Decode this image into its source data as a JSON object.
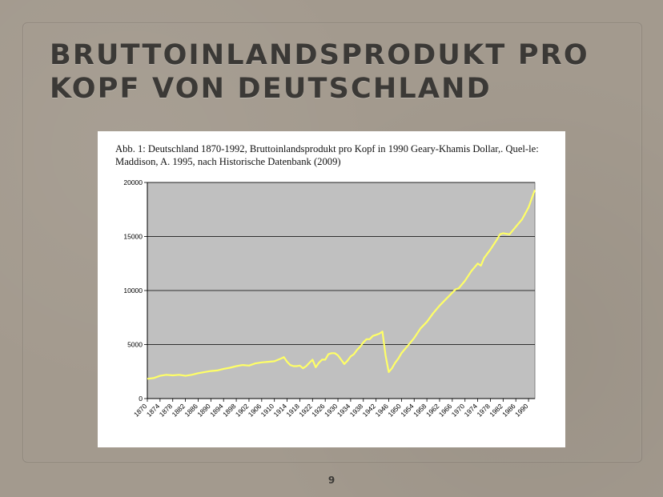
{
  "slide": {
    "title": "BRUTTOINLANDSPRODUKT PRO KOPF VON DEUTSCHLAND",
    "caption": "Abb. 1: Deutschland 1870-1992, Bruttoinlandsprodukt pro Kopf in 1990 Geary-Khamis Dollar,. Quel-le: Maddison, A. 1995, nach Historische Datenbank (2009)",
    "page_number": "9"
  },
  "chart_data": {
    "type": "line",
    "title": "",
    "xlabel": "",
    "ylabel": "",
    "xlim": [
      1870,
      1992
    ],
    "ylim": [
      0,
      20000
    ],
    "yticks": [
      0,
      5000,
      10000,
      15000,
      20000
    ],
    "xticks": [
      1870,
      1874,
      1878,
      1882,
      1886,
      1890,
      1894,
      1898,
      1902,
      1906,
      1910,
      1914,
      1918,
      1922,
      1926,
      1930,
      1934,
      1938,
      1942,
      1946,
      1950,
      1954,
      1958,
      1962,
      1966,
      1970,
      1974,
      1978,
      1982,
      1986,
      1990
    ],
    "grid": true,
    "legend": "none",
    "colors": {
      "line": "#ffff66",
      "plot_bg": "#c0c0c0",
      "grid": "#000000"
    },
    "series": [
      {
        "x": [
          1870,
          1872,
          1874,
          1876,
          1878,
          1880,
          1882,
          1884,
          1886,
          1888,
          1890,
          1892,
          1894,
          1896,
          1898,
          1900,
          1902,
          1904,
          1906,
          1908,
          1910,
          1912,
          1913,
          1914,
          1915,
          1916,
          1917,
          1918,
          1919,
          1920,
          1921,
          1922,
          1923,
          1924,
          1925,
          1926,
          1927,
          1928,
          1929,
          1930,
          1931,
          1932,
          1933,
          1934,
          1935,
          1936,
          1937,
          1938,
          1939,
          1940,
          1941,
          1942,
          1943,
          1944,
          1945,
          1946,
          1947,
          1948,
          1949,
          1950,
          1952,
          1954,
          1956,
          1958,
          1960,
          1962,
          1964,
          1966,
          1967,
          1968,
          1970,
          1972,
          1974,
          1975,
          1976,
          1978,
          1980,
          1981,
          1982,
          1984,
          1986,
          1988,
          1990,
          1991,
          1992
        ],
        "values": [
          1830,
          1900,
          2100,
          2200,
          2150,
          2200,
          2100,
          2200,
          2350,
          2450,
          2550,
          2600,
          2750,
          2850,
          3000,
          3100,
          3050,
          3250,
          3350,
          3400,
          3450,
          3700,
          3830,
          3400,
          3100,
          3000,
          3000,
          3050,
          2800,
          3000,
          3300,
          3600,
          2900,
          3300,
          3600,
          3600,
          4100,
          4200,
          4200,
          4000,
          3600,
          3200,
          3500,
          3900,
          4100,
          4500,
          4800,
          5200,
          5500,
          5500,
          5800,
          5900,
          6000,
          6200,
          4000,
          2450,
          2800,
          3300,
          3700,
          4200,
          4900,
          5600,
          6500,
          7100,
          7900,
          8600,
          9200,
          9800,
          10100,
          10200,
          10900,
          11800,
          12500,
          12300,
          13000,
          13800,
          14700,
          15200,
          15300,
          15200,
          15900,
          16600,
          17700,
          18500,
          19300
        ]
      }
    ]
  }
}
